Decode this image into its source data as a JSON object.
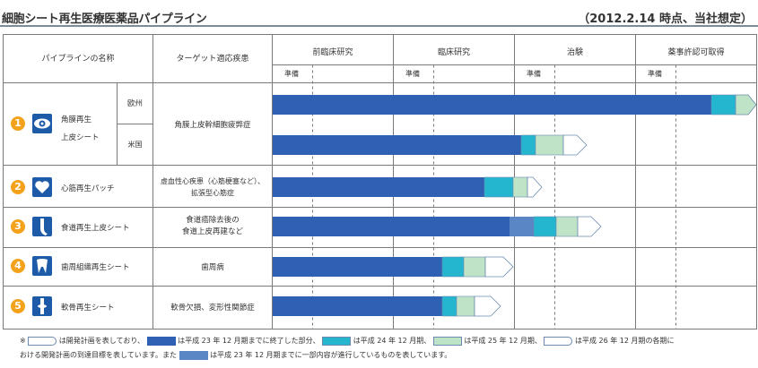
{
  "title": "細胞シート再生医療医薬品パイプライン",
  "as_of": "（2012.2.14 時点、当社想定）",
  "header": {
    "pipeline_name": "パイプラインの名称",
    "target_disease": "ターゲット適応疾患",
    "phases": [
      "前臨床研究",
      "臨床研究",
      "治験",
      "薬事許認可取得"
    ],
    "prep_label": "準備"
  },
  "colors": {
    "completed": "#2e60b4",
    "partial": "#5b86c6",
    "fy2012_12": "#25b6cf",
    "fy2013_12": "#bfe3c7",
    "fy2014_12": "#ffffff",
    "number_badge": "#f4a21b"
  },
  "rows": [
    {
      "number": "1",
      "icon": "eye-icon",
      "name": "角膜再生\n上皮シート",
      "regions": [
        "欧州",
        "米国"
      ],
      "disease": "角膜上皮幹細胞疲弊症"
    },
    {
      "number": "2",
      "icon": "heart-icon",
      "name": "心筋再生パッチ",
      "disease": "虚血性心疾患（心筋梗塞など）、\n拡張型心筋症"
    },
    {
      "number": "3",
      "icon": "esophagus-icon",
      "name": "食道再生上皮シート",
      "disease": "食道癌除去後の\n食道上皮再建など"
    },
    {
      "number": "4",
      "icon": "tooth-icon",
      "name": "歯周組織再生シート",
      "disease": "歯周病"
    },
    {
      "number": "5",
      "icon": "knee-joint-icon",
      "name": "軟骨再生シート",
      "disease": "軟骨欠損、変形性関節症"
    }
  ],
  "legend": {
    "marker": "※",
    "t1": "は開発計画を表しており、",
    "t2": "は平成 23 年 12 月期までに終了した部分、",
    "t3": "は平成 24 年 12 月期、",
    "t4": "は平成 25 年 12 月期、",
    "t5": "は平成 26 年 12 月期の各期に",
    "t6": "おける開発計画の到達目標を表しています。また",
    "t7": "は平成 23 年 12 月期までに一部内容が進行しているものを表しています。"
  }
}
